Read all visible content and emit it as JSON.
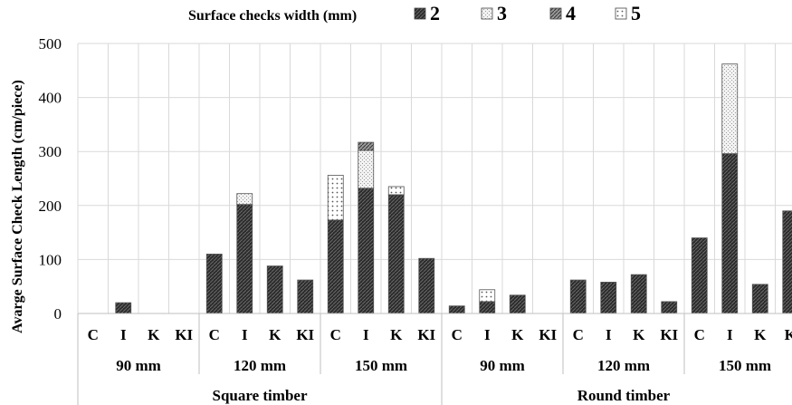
{
  "chart_data": {
    "type": "bar",
    "stacked": true,
    "legend_title": "Surface checks width (mm)",
    "ylabel": "Avarge Surface Check Length (cm/piece)",
    "xlabel": "",
    "ylim": [
      0,
      500
    ],
    "yticks": [
      "0",
      "100",
      "200",
      "300",
      "400",
      "500"
    ],
    "grid": true,
    "legend_position": "top",
    "families": [
      {
        "label": "Square timber",
        "groups": [
          "90 mm",
          "120 mm",
          "150 mm"
        ]
      },
      {
        "label": "Round timber",
        "groups": [
          "90 mm",
          "120 mm",
          "150 mm"
        ]
      }
    ],
    "categories": [
      "C",
      "I",
      "K",
      "KI",
      "C",
      "I",
      "K",
      "KI",
      "C",
      "I",
      "K",
      "KI",
      "C",
      "I",
      "K",
      "KI",
      "C",
      "I",
      "K",
      "KI",
      "C",
      "I",
      "K",
      "K"
    ],
    "series": [
      {
        "name": "2",
        "color": "#2b2b2b",
        "values": [
          0,
          20,
          0,
          0,
          110,
          202,
          88,
          62,
          173,
          232,
          220,
          102,
          14,
          22,
          34,
          0,
          62,
          58,
          72,
          22,
          140,
          296,
          54,
          190
        ]
      },
      {
        "name": "3",
        "color": "#e8e8e8",
        "values": [
          0,
          0,
          0,
          0,
          0,
          20,
          0,
          0,
          0,
          70,
          0,
          0,
          0,
          0,
          0,
          0,
          0,
          0,
          0,
          0,
          0,
          166,
          0,
          0
        ]
      },
      {
        "name": "4",
        "color": "#707070",
        "values": [
          0,
          0,
          0,
          0,
          0,
          0,
          0,
          0,
          0,
          15,
          0,
          0,
          0,
          0,
          0,
          0,
          0,
          0,
          0,
          0,
          0,
          0,
          0,
          0
        ]
      },
      {
        "name": "5",
        "color": "#f4f4f4",
        "values": [
          0,
          0,
          0,
          0,
          0,
          0,
          0,
          0,
          83,
          0,
          15,
          0,
          0,
          22,
          0,
          0,
          0,
          0,
          0,
          0,
          0,
          0,
          0,
          0
        ]
      }
    ]
  }
}
